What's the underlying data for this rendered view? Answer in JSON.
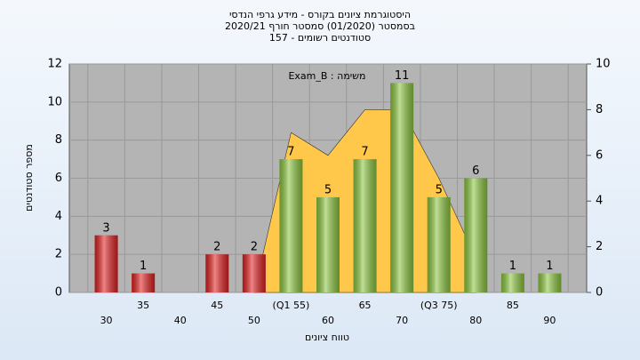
{
  "chart_data": {
    "type": "bar",
    "title": "היסטוגרמת ציונים בקורס - מידע גרפי הנדסי",
    "subtitle": "בסמסטר  (01/2020)  סמסטר חורף  2020/21",
    "subtitle2": "סטודנטים רשומים - 157",
    "annotation": "משימה : Exam_B",
    "x_label": "טווח ציונים",
    "y_label": "מספר סטודנטים",
    "categories": [
      "30",
      "35",
      "40",
      "45",
      "50",
      "(Q1 55)",
      "60",
      "65",
      "70",
      "(Q3 75)",
      "80",
      "85",
      "90"
    ],
    "values": [
      3,
      1,
      0,
      2,
      2,
      7,
      5,
      7,
      11,
      5,
      6,
      1,
      1
    ],
    "value_labels": [
      "3",
      "1",
      null,
      "2",
      "2",
      "7",
      "5",
      "7",
      "11",
      "5",
      "6",
      "1",
      "1"
    ],
    "colors": [
      "#e02020",
      "#e02020",
      "#e02020",
      "#e02020",
      "#e02020",
      "#8cc63f",
      "#8cc63f",
      "#8cc63f",
      "#8cc63f",
      "#8cc63f",
      "#8cc63f",
      "#8cc63f",
      "#8cc63f"
    ],
    "area": {
      "axis": "y2",
      "color": "#ffc84a",
      "values": [
        null,
        null,
        null,
        null,
        0,
        7,
        6,
        8,
        8,
        5,
        1.5,
        null,
        null
      ]
    },
    "ylim": [
      0,
      12
    ],
    "yticks": [
      0,
      2,
      4,
      6,
      8,
      10,
      12
    ],
    "y2lim": [
      0,
      10
    ],
    "y2ticks": [
      0,
      2,
      4,
      6,
      8,
      10
    ],
    "grid": true
  }
}
